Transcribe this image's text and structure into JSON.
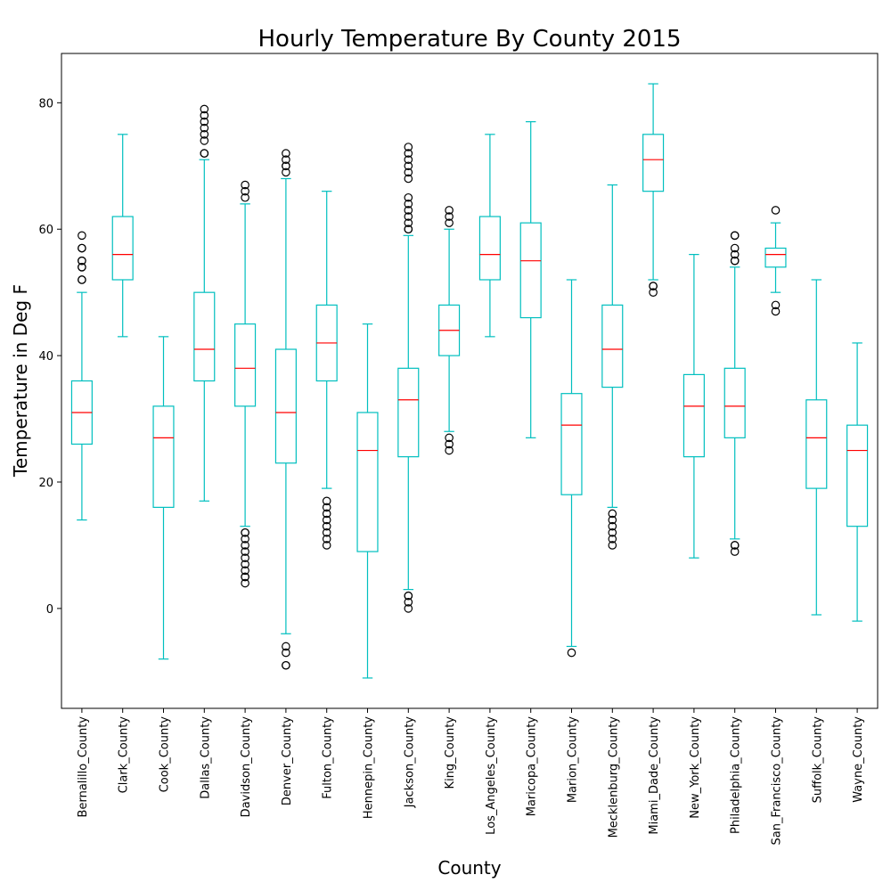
{
  "chart_data": {
    "type": "box",
    "title": "Hourly Temperature By County 2015",
    "xlabel": "County",
    "ylabel": "Temperature in Deg F",
    "ylim": [
      -15.8,
      87.8
    ],
    "yticks": [
      0,
      20,
      40,
      60,
      80
    ],
    "grid": false,
    "legend": "none",
    "colors": {
      "box": "#00bfbf",
      "median": "#ff0000",
      "flier": "#000000"
    },
    "categories": [
      "Bernalillo_County",
      "Clark_County",
      "Cook_County",
      "Dallas_County",
      "Davidson_County",
      "Denver_County",
      "Fulton_County",
      "Hennepin_County",
      "Jackson_County",
      "King_County",
      "Los_Angeles_County",
      "Maricopa_County",
      "Marion_County",
      "Mecklenburg_County",
      "Miami_Dade_County",
      "New_York_County",
      "Philadelphia_County",
      "San_Francisco_County",
      "Suffolk_County",
      "Wayne_County"
    ],
    "boxes": [
      {
        "whislo": 14,
        "q1": 26,
        "med": 31,
        "q3": 36,
        "whishi": 50,
        "fliers": [
          52,
          52,
          54,
          54,
          55,
          55,
          57,
          57,
          59
        ]
      },
      {
        "whislo": 43,
        "q1": 52,
        "med": 56,
        "q3": 62,
        "whishi": 75,
        "fliers": []
      },
      {
        "whislo": -8,
        "q1": 16,
        "med": 27,
        "q3": 32,
        "whishi": 43,
        "fliers": []
      },
      {
        "whislo": 17,
        "q1": 36,
        "med": 41,
        "q3": 50,
        "whishi": 71,
        "fliers": [
          72,
          72,
          74,
          75,
          76,
          77,
          78,
          79
        ]
      },
      {
        "whislo": 13,
        "q1": 32,
        "med": 38,
        "q3": 45,
        "whishi": 64,
        "fliers": [
          4,
          5,
          5,
          6,
          7,
          8,
          9,
          10,
          11,
          12,
          12,
          65,
          66,
          67
        ]
      },
      {
        "whislo": -4,
        "q1": 23,
        "med": 31,
        "q3": 41,
        "whishi": 68,
        "fliers": [
          -9,
          -9,
          -7,
          -6,
          69,
          70,
          70,
          71,
          72
        ]
      },
      {
        "whislo": 19,
        "q1": 36,
        "med": 42,
        "q3": 48,
        "whishi": 66,
        "fliers": [
          10,
          11,
          12,
          13,
          14,
          15,
          16,
          17
        ]
      },
      {
        "whislo": -11,
        "q1": 9,
        "med": 25,
        "q3": 31,
        "whishi": 45,
        "fliers": []
      },
      {
        "whislo": 3,
        "q1": 24,
        "med": 33,
        "q3": 38,
        "whishi": 59,
        "fliers": [
          0,
          1,
          2,
          2,
          60,
          60,
          61,
          62,
          63,
          64,
          65,
          68,
          69,
          70,
          71,
          72,
          73
        ]
      },
      {
        "whislo": 28,
        "q1": 40,
        "med": 44,
        "q3": 48,
        "whishi": 60,
        "fliers": [
          25,
          26,
          27,
          61,
          62,
          63
        ]
      },
      {
        "whislo": 43,
        "q1": 52,
        "med": 56,
        "q3": 62,
        "whishi": 75,
        "fliers": []
      },
      {
        "whislo": 27,
        "q1": 46,
        "med": 55,
        "q3": 61,
        "whishi": 77,
        "fliers": []
      },
      {
        "whislo": -6,
        "q1": 18,
        "med": 29,
        "q3": 34,
        "whishi": 52,
        "fliers": [
          -7
        ]
      },
      {
        "whislo": 16,
        "q1": 35,
        "med": 41,
        "q3": 48,
        "whishi": 67,
        "fliers": [
          10,
          11,
          12,
          13,
          14,
          15
        ]
      },
      {
        "whislo": 52,
        "q1": 66,
        "med": 71,
        "q3": 75,
        "whishi": 83,
        "fliers": [
          50,
          51,
          51
        ]
      },
      {
        "whislo": 8,
        "q1": 24,
        "med": 32,
        "q3": 37,
        "whishi": 56,
        "fliers": []
      },
      {
        "whislo": 11,
        "q1": 27,
        "med": 32,
        "q3": 38,
        "whishi": 54,
        "fliers": [
          9,
          10,
          10,
          55,
          55,
          56,
          57,
          59,
          59
        ]
      },
      {
        "whislo": 50,
        "q1": 54,
        "med": 56,
        "q3": 57,
        "whishi": 61,
        "fliers": [
          47,
          48,
          63
        ]
      },
      {
        "whislo": -1,
        "q1": 19,
        "med": 27,
        "q3": 33,
        "whishi": 52,
        "fliers": []
      },
      {
        "whislo": -2,
        "q1": 13,
        "med": 25,
        "q3": 29,
        "whishi": 42,
        "fliers": []
      }
    ]
  }
}
